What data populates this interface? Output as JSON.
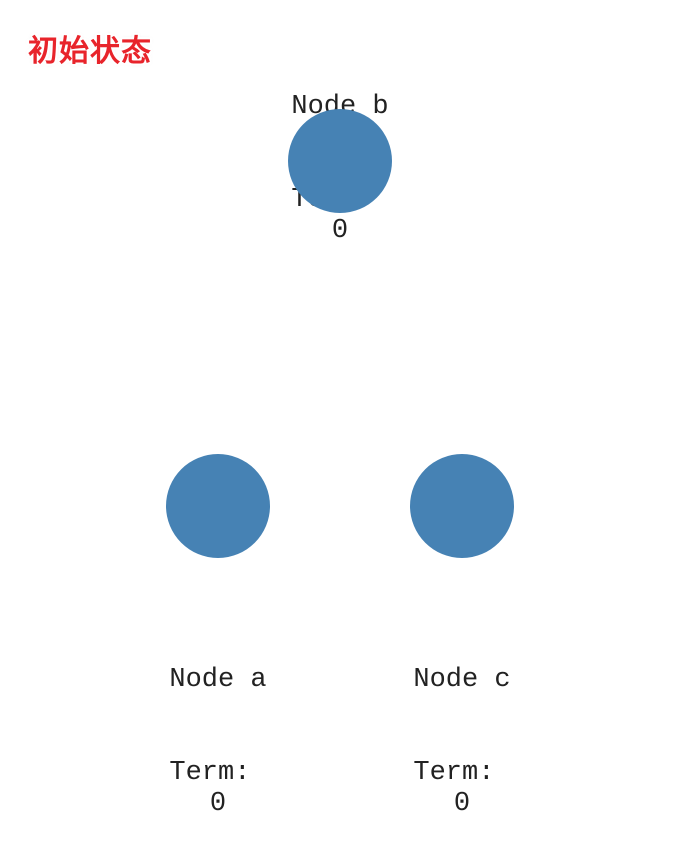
{
  "title": "初始状态",
  "colors": {
    "title": "#e8242b",
    "node_fill": "#4682b4"
  },
  "term_label": "Term",
  "nodes": [
    {
      "id": "b",
      "name": "Node b",
      "term": "0"
    },
    {
      "id": "a",
      "name": "Node a",
      "term": "0"
    },
    {
      "id": "c",
      "name": "Node c",
      "term": "0"
    }
  ]
}
